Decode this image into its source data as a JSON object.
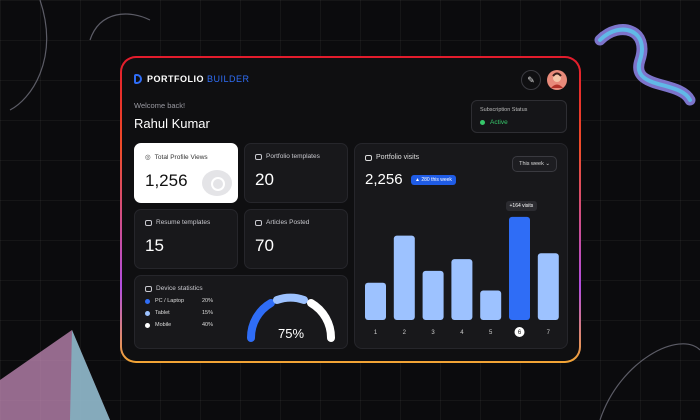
{
  "brand": {
    "word1": "PORTFOLIO",
    "word2": "BUILDER"
  },
  "header": {
    "welcome": "Welcome back!",
    "name": "Rahul Kumar"
  },
  "subscription": {
    "title": "Subscription Status",
    "status": "Active",
    "status_color": "#36c76a"
  },
  "stats": [
    {
      "label": "Total Profile Views",
      "value": "1,256"
    },
    {
      "label": "Portfolio templates",
      "value": "20"
    },
    {
      "label": "Resume templates",
      "value": "15"
    },
    {
      "label": "Articles Posted",
      "value": "70"
    }
  ],
  "device": {
    "title": "Device statistics",
    "rows": [
      {
        "name": "PC / Laptop",
        "pct": "20%",
        "color": "#2f6df6"
      },
      {
        "name": "Tablet",
        "pct": "15%",
        "color": "#9dc2ff"
      },
      {
        "name": "Mobile",
        "pct": "40%",
        "color": "#ffffff"
      }
    ],
    "gauge_label": "75%"
  },
  "visits": {
    "title": "Portfolio visits",
    "total": "2,256",
    "badge": "▲ 280 this week",
    "period": "This week",
    "tooltip": "+164 visits",
    "chart_data": {
      "type": "bar",
      "categories": [
        "1",
        "2",
        "3",
        "4",
        "5",
        "6",
        "7"
      ],
      "values": [
        38,
        86,
        50,
        62,
        30,
        105,
        68
      ],
      "highlight_index": 5,
      "colors": {
        "bar": "#9dc2ff",
        "highlight": "#2f6df6"
      },
      "ylim": [
        0,
        110
      ]
    }
  }
}
